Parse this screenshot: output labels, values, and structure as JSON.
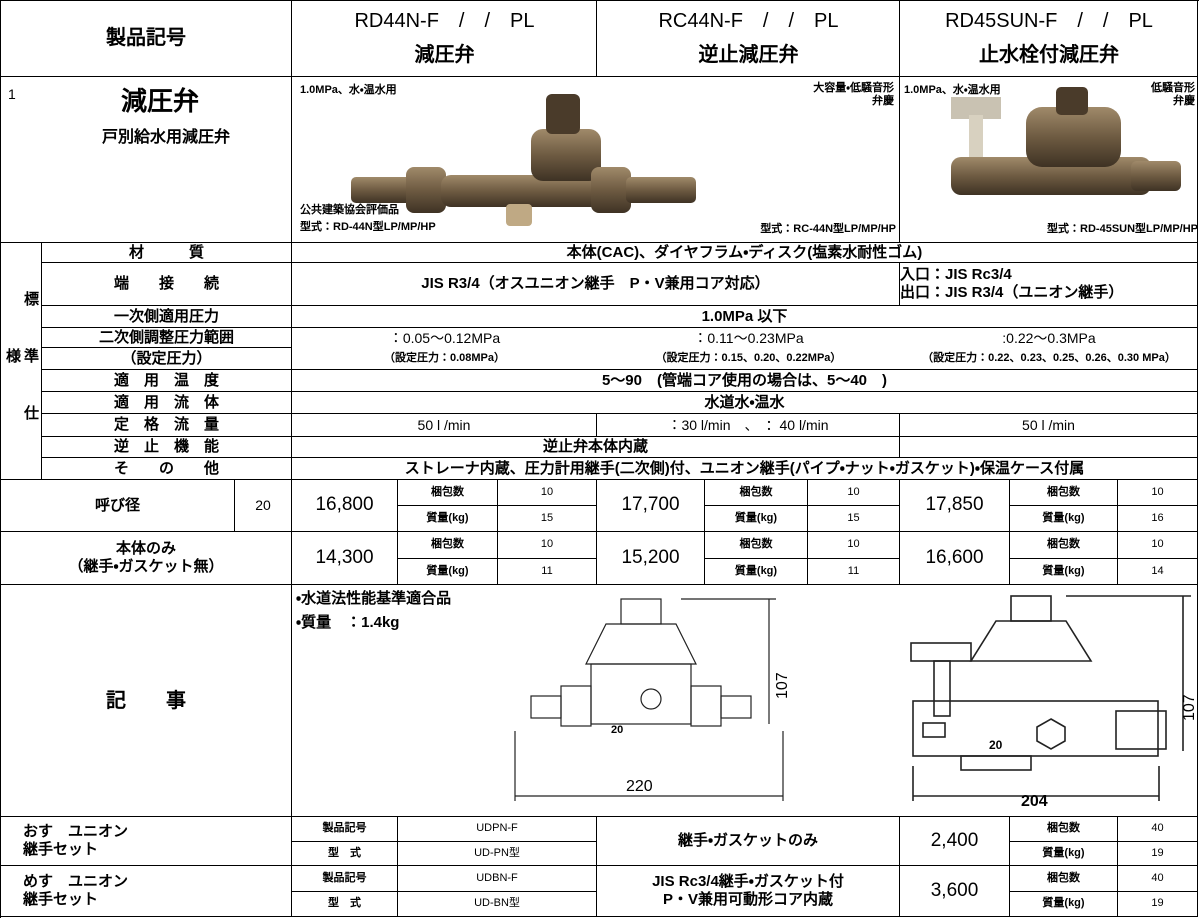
{
  "header": {
    "label": "製品記号",
    "products": [
      {
        "code": "RD44N-F　/　/　PL",
        "name": "減圧弁"
      },
      {
        "code": "RC44N-F　/　/　PL",
        "name": "逆止減圧弁"
      },
      {
        "code": "RD45SUN-F　/　/　PL",
        "name": "止水栓付減圧弁"
      }
    ]
  },
  "category": {
    "number": "1",
    "title": "減圧弁",
    "subtitle": "戸別給水用減圧弁"
  },
  "photos": {
    "left": {
      "use": "1.0MPa、水・温水用",
      "features": "大容量・低騒音形\n弁慶",
      "certified": "公共建築協会評価品",
      "model_1": "型式：RD-44N型LP/MP/HP",
      "model_2": "型式：RC-44N型LP/MP/HP"
    },
    "right": {
      "use": "1.0MPa、水・温水用",
      "features": "低騒音形\n弁慶",
      "model": "型式：RD-45SUN型LP/MP/HP"
    }
  },
  "spec": {
    "side_label": "標準仕様",
    "rows": [
      {
        "label": "材　　　質",
        "values": [
          "本体(CAC)、ダイヤフラム・ディスク(塩素水耐性ゴム)"
        ]
      },
      {
        "label": "端　　接　　続",
        "values": [
          "JIS R3/4（オスユニオン継手　P・V兼用コア対応）",
          "入口：JIS Rc3/4\n出口：JIS R3/4（ユニオン継手）"
        ]
      },
      {
        "label": "一次側適用圧力",
        "values": [
          "1.0MPa 以下"
        ]
      },
      {
        "label": "二次側調整圧力範囲",
        "values": [
          "：0.05～0.12MPa",
          "：0.11～0.23MPa",
          ":0.22～0.3MPa"
        ]
      },
      {
        "label": "（設定圧力）",
        "values": [
          "（設定圧力：0.08MPa）",
          "（設定圧力：0.15、0.20、0.22MPa）",
          "（設定圧力：0.22、0.23、0.25、0.26、0.30 MPa）"
        ]
      },
      {
        "label": "適　用　温　度",
        "values": [
          "5～90　(管端コア使用の場合は、5～40　)"
        ]
      },
      {
        "label": "適　用　流　体",
        "values": [
          "水道水・温水"
        ]
      },
      {
        "label": "定　格　流　量",
        "values": [
          "50 l /min",
          "：30 l/min　、　：40 l/min",
          "50 l /min"
        ]
      },
      {
        "label": "逆　止　機　能",
        "values": [
          "逆止弁本体内蔵"
        ]
      },
      {
        "label": "そ　　の　　他",
        "values": [
          "ストレーナ内蔵、圧力計用継手(二次側)付、ユニオン継手(パイプ・ナット・ガスケット)・保温ケース付属"
        ]
      }
    ]
  },
  "pricing": {
    "size_label": "呼び径",
    "size": "20",
    "body_only_label": "本体のみ\n（継手・ガスケット無）",
    "pack_label": "梱包数",
    "weight_label": "質量(kg)",
    "full": [
      {
        "price": "16,800",
        "pack": "10",
        "weight": "15"
      },
      {
        "price": "17,700",
        "pack": "10",
        "weight": "15"
      },
      {
        "price": "17,850",
        "pack": "10",
        "weight": "16"
      }
    ],
    "body_only": [
      {
        "price": "14,300",
        "pack": "10",
        "weight": "11"
      },
      {
        "price": "15,200",
        "pack": "10",
        "weight": "11"
      },
      {
        "price": "16,600",
        "pack": "10",
        "weight": "14"
      }
    ]
  },
  "notes": {
    "label": "記　　事",
    "items": [
      "・水道法性能基準適合品",
      "・質量　：1.4kg"
    ],
    "drawing_1": {
      "height": "107",
      "length": "220",
      "size": "20"
    },
    "drawing_2": {
      "height": "107",
      "length": "204",
      "size": "20"
    }
  },
  "fittings": {
    "product_label": "製品記号",
    "model_label": "型　式",
    "rows": [
      {
        "label": "おす　ユニオン\n継手セット",
        "product": "UDPN-F",
        "model": "UD-PN型",
        "note": "継手・ガスケットのみ",
        "price": "2,400",
        "pack": "40",
        "weight": "19"
      },
      {
        "label": "めす　ユニオン\n継手セット",
        "product": "UDBN-F",
        "model": "UD-BN型",
        "note": "JIS Rc3/4継手・ガスケット付\nP・V兼用可動形コア内蔵",
        "price": "3,600",
        "pack": "40",
        "weight": "19"
      }
    ]
  }
}
